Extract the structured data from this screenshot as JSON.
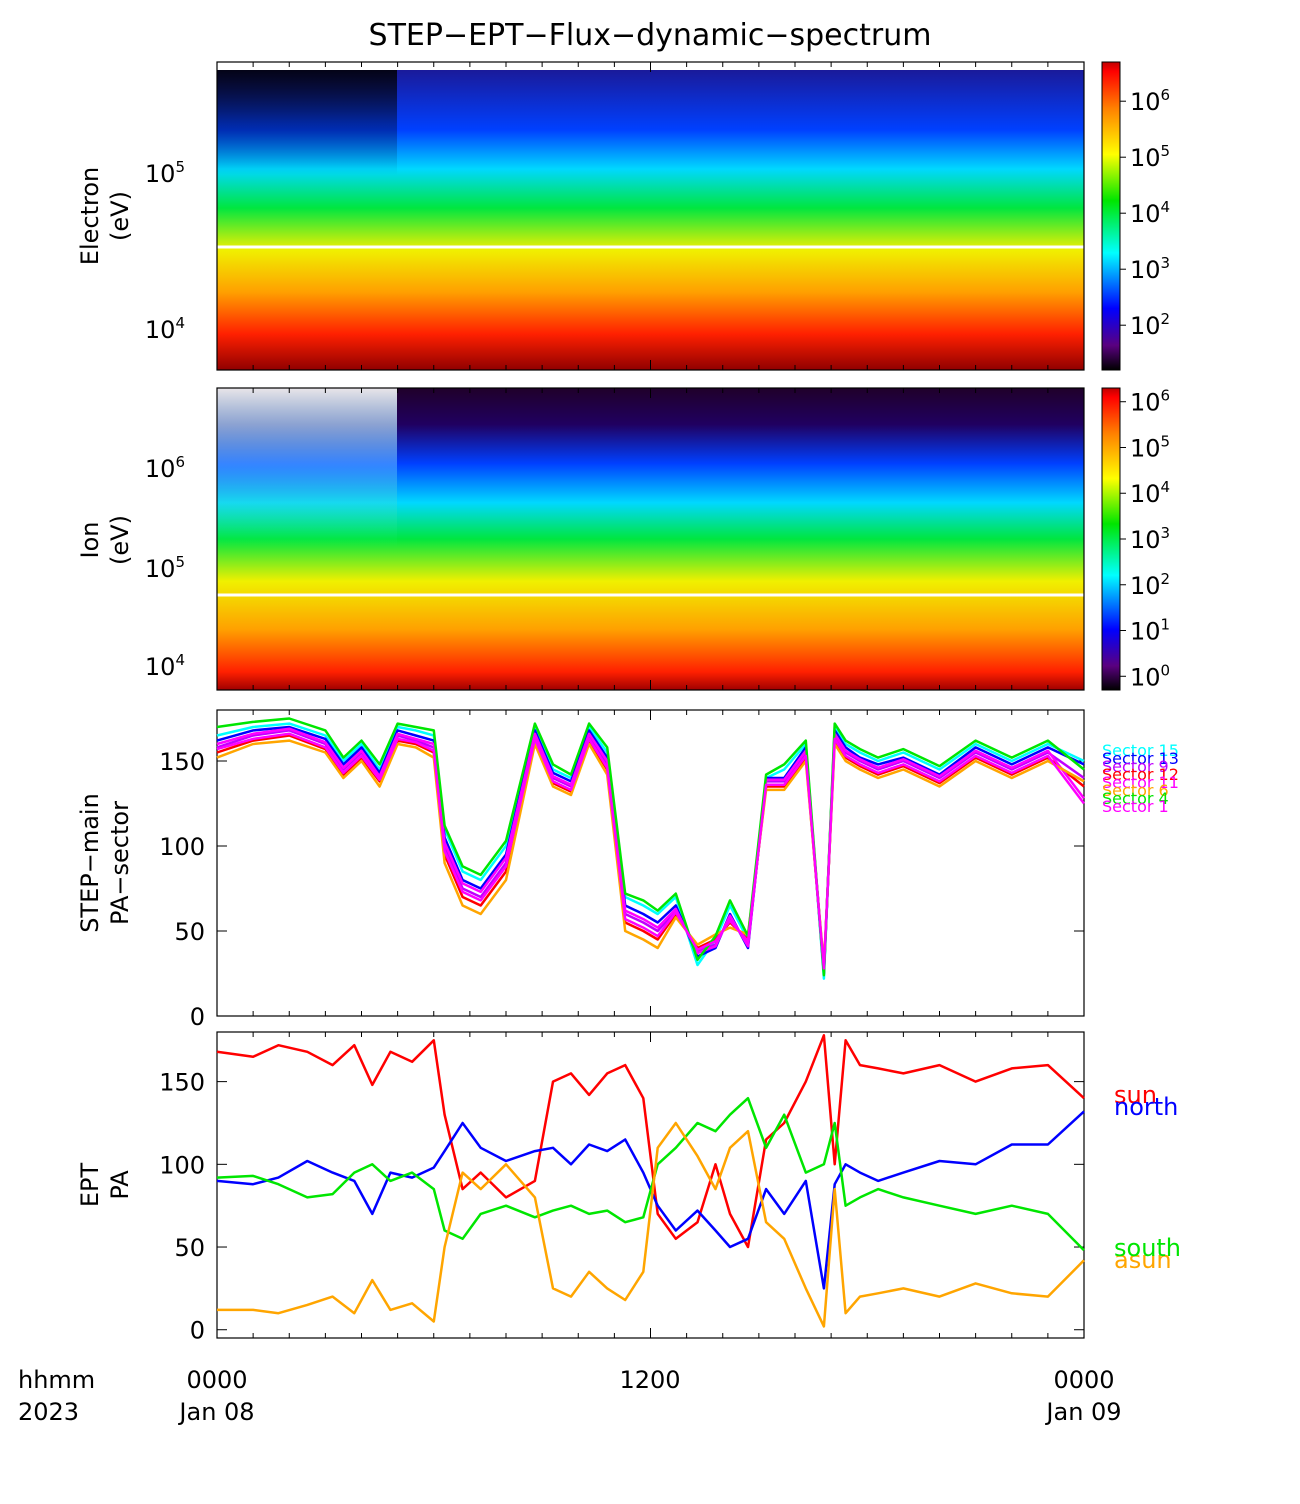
{
  "title": "STEP−EPT−Flux−dynamic−spectrum",
  "footer": {
    "time_label": "hhmm",
    "year_label": "2023",
    "ticks": [
      {
        "hhmm": "0000",
        "date": "Jan 08"
      },
      {
        "hhmm": "1200",
        "date": ""
      },
      {
        "hhmm": "0000",
        "date": "Jan 09"
      }
    ]
  },
  "colors": {
    "sun": "#ff0000",
    "north": "#0000ff",
    "south": "#00e600",
    "asun": "#ffa500"
  },
  "chart_data": [
    {
      "id": "electron",
      "type": "heatmap",
      "ylabel": [
        "Electron",
        "(eV)"
      ],
      "yscale": "log",
      "ylim": [
        5500,
        550000
      ],
      "ytick_labels": [
        "10^4",
        "10^5"
      ],
      "cbar_labels": [
        "10^2",
        "10^3",
        "10^4",
        "10^5",
        "10^6"
      ],
      "cbar_range_log10": [
        1.2,
        6.7
      ],
      "xlim_hours": [
        0,
        24
      ],
      "grid": false
    },
    {
      "id": "ion",
      "type": "heatmap",
      "ylabel": [
        "Ion",
        "(eV)"
      ],
      "yscale": "log",
      "ylim": [
        5000,
        5500000
      ],
      "ytick_labels": [
        "10^4",
        "10^5",
        "10^6"
      ],
      "cbar_labels": [
        "10^0",
        "10^1",
        "10^2",
        "10^3",
        "10^4",
        "10^5",
        "10^6"
      ],
      "cbar_range_log10": [
        -0.3,
        6.3
      ],
      "xlim_hours": [
        0,
        24
      ],
      "grid": false
    },
    {
      "id": "step_pa",
      "type": "line",
      "ylabel": [
        "STEP−main",
        "PA−sector"
      ],
      "ylim": [
        0,
        180
      ],
      "yticks": [
        0,
        50,
        100,
        150
      ],
      "xlim_hours": [
        0,
        24
      ],
      "x": [
        0,
        1,
        2,
        3,
        3.5,
        4,
        4.5,
        5,
        5.5,
        6,
        6.3,
        6.8,
        7.3,
        8,
        8.8,
        9.3,
        9.8,
        10.3,
        10.8,
        11.3,
        11.8,
        12.2,
        12.7,
        13.3,
        13.8,
        14.2,
        14.7,
        15.2,
        15.7,
        16.3,
        16.8,
        17.1,
        17.4,
        17.8,
        18.3,
        19,
        20,
        21,
        22,
        23,
        24
      ],
      "series": [
        {
          "name": "sector 15",
          "color": "#00ffff",
          "values": [
            165,
            170,
            172,
            165,
            150,
            160,
            145,
            170,
            168,
            165,
            110,
            85,
            80,
            100,
            170,
            145,
            140,
            170,
            155,
            70,
            65,
            60,
            70,
            30,
            45,
            65,
            45,
            140,
            145,
            160,
            22,
            170,
            160,
            155,
            150,
            155,
            145,
            160,
            150,
            160,
            150
          ]
        },
        {
          "name": "sector 13",
          "color": "#0000ff",
          "values": [
            162,
            168,
            170,
            163,
            148,
            158,
            143,
            168,
            165,
            162,
            105,
            80,
            75,
            95,
            168,
            143,
            138,
            168,
            152,
            65,
            60,
            55,
            65,
            35,
            40,
            60,
            40,
            140,
            140,
            158,
            25,
            168,
            158,
            152,
            148,
            152,
            142,
            158,
            148,
            158,
            148
          ]
        },
        {
          "name": "sector 9",
          "color": "#c000ff",
          "values": [
            158,
            165,
            168,
            160,
            145,
            155,
            140,
            165,
            162,
            158,
            100,
            75,
            70,
            90,
            165,
            140,
            135,
            165,
            148,
            60,
            55,
            50,
            62,
            38,
            42,
            58,
            42,
            138,
            138,
            155,
            27,
            165,
            155,
            150,
            145,
            150,
            140,
            155,
            145,
            155,
            140
          ]
        },
        {
          "name": "sector 12",
          "color": "#ff0000",
          "values": [
            155,
            162,
            165,
            157,
            142,
            152,
            138,
            162,
            160,
            155,
            95,
            70,
            65,
            85,
            162,
            137,
            132,
            162,
            145,
            55,
            50,
            45,
            60,
            40,
            45,
            55,
            45,
            135,
            135,
            152,
            28,
            162,
            152,
            147,
            142,
            147,
            137,
            152,
            142,
            152,
            135
          ]
        },
        {
          "name": "sector 11",
          "color": "#ff00ff",
          "values": [
            160,
            166,
            169,
            161,
            146,
            156,
            141,
            166,
            163,
            160,
            102,
            78,
            73,
            93,
            166,
            141,
            136,
            166,
            150,
            62,
            57,
            52,
            63,
            37,
            41,
            59,
            41,
            139,
            139,
            156,
            26,
            166,
            156,
            151,
            146,
            151,
            141,
            156,
            146,
            156,
            128
          ]
        },
        {
          "name": "sector 6",
          "color": "#ffa500",
          "values": [
            152,
            160,
            162,
            155,
            140,
            150,
            135,
            160,
            158,
            152,
            90,
            65,
            60,
            80,
            160,
            135,
            130,
            160,
            142,
            50,
            45,
            40,
            58,
            42,
            48,
            52,
            48,
            133,
            133,
            150,
            30,
            160,
            150,
            145,
            140,
            145,
            135,
            150,
            140,
            150,
            138
          ]
        },
        {
          "name": "sector 4",
          "color": "#00e600",
          "values": [
            170,
            173,
            175,
            168,
            152,
            162,
            148,
            172,
            170,
            168,
            112,
            88,
            83,
            103,
            172,
            148,
            142,
            172,
            158,
            72,
            68,
            62,
            72,
            33,
            47,
            68,
            47,
            142,
            148,
            162,
            24,
            172,
            162,
            157,
            152,
            157,
            147,
            162,
            152,
            162,
            145
          ]
        },
        {
          "name": "sector 1",
          "color": "#ff00ff",
          "values": [
            157,
            163,
            166,
            158,
            143,
            153,
            139,
            163,
            161,
            156,
            97,
            73,
            68,
            88,
            163,
            138,
            133,
            163,
            146,
            57,
            52,
            47,
            61,
            39,
            44,
            56,
            44,
            136,
            136,
            153,
            28,
            163,
            153,
            148,
            143,
            148,
            138,
            153,
            143,
            153,
            125
          ]
        }
      ],
      "legend_labels": [
        "Sector 15",
        "Sector 13",
        "Sector 9",
        "Sector 12",
        "Sector 11",
        "Sector 6",
        "Sector 4",
        "Sector 1"
      ]
    },
    {
      "id": "ept_pa",
      "type": "line",
      "ylabel": [
        "EPT",
        "PA"
      ],
      "ylim": [
        -5,
        180
      ],
      "yticks": [
        0,
        50,
        100,
        150
      ],
      "xlim_hours": [
        0,
        24
      ],
      "x": [
        0,
        1,
        1.7,
        2.5,
        3.2,
        3.8,
        4.3,
        4.8,
        5.4,
        6,
        6.3,
        6.8,
        7.3,
        8,
        8.8,
        9.3,
        9.8,
        10.3,
        10.8,
        11.3,
        11.8,
        12.2,
        12.7,
        13.3,
        13.8,
        14.2,
        14.7,
        15.2,
        15.7,
        16.3,
        16.8,
        17.1,
        17.4,
        17.8,
        18.3,
        19,
        20,
        21,
        22,
        23,
        24
      ],
      "series": [
        {
          "name": "sun",
          "color": "#ff0000",
          "values": [
            168,
            165,
            172,
            168,
            160,
            172,
            148,
            168,
            162,
            175,
            130,
            85,
            95,
            80,
            90,
            150,
            155,
            142,
            155,
            160,
            140,
            70,
            55,
            65,
            100,
            70,
            50,
            115,
            125,
            150,
            178,
            100,
            175,
            160,
            158,
            155,
            160,
            150,
            158,
            160,
            140
          ]
        },
        {
          "name": "north",
          "color": "#0000ff",
          "values": [
            90,
            88,
            92,
            102,
            95,
            90,
            70,
            95,
            92,
            98,
            108,
            125,
            110,
            102,
            108,
            110,
            100,
            112,
            108,
            115,
            95,
            75,
            60,
            72,
            60,
            50,
            55,
            85,
            70,
            90,
            25,
            88,
            100,
            95,
            90,
            95,
            102,
            100,
            112,
            112,
            132
          ]
        },
        {
          "name": "south",
          "color": "#00e600",
          "values": [
            92,
            93,
            88,
            80,
            82,
            95,
            100,
            90,
            95,
            85,
            60,
            55,
            70,
            75,
            68,
            72,
            75,
            70,
            72,
            65,
            68,
            100,
            110,
            125,
            120,
            130,
            140,
            110,
            130,
            95,
            100,
            125,
            75,
            80,
            85,
            80,
            75,
            70,
            75,
            70,
            48
          ]
        },
        {
          "name": "asun",
          "color": "#ffa500",
          "values": [
            12,
            12,
            10,
            15,
            20,
            10,
            30,
            12,
            16,
            5,
            50,
            95,
            85,
            100,
            80,
            25,
            20,
            35,
            25,
            18,
            35,
            110,
            125,
            105,
            85,
            110,
            120,
            65,
            55,
            25,
            2,
            85,
            10,
            20,
            22,
            25,
            20,
            28,
            22,
            20,
            42
          ]
        }
      ],
      "legend_labels": [
        "sun",
        "north",
        "south",
        "asun"
      ]
    }
  ]
}
